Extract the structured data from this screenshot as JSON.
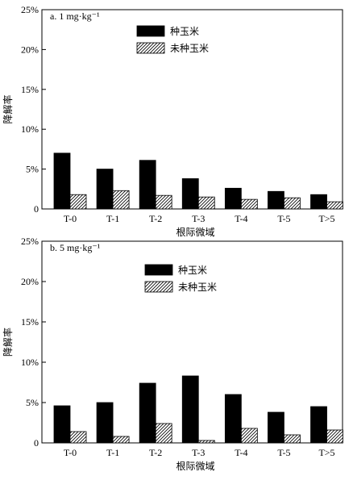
{
  "chart_data": [
    {
      "type": "bar",
      "panel_label": "a. 1 mg·kg⁻¹",
      "xlabel": "根际微域",
      "ylabel": "降解率",
      "categories": [
        "T-0",
        "T-1",
        "T-2",
        "T-3",
        "T-4",
        "T-5",
        "T>5"
      ],
      "y_ticks": [
        "0",
        "5%",
        "10%",
        "15%",
        "20%",
        "25%"
      ],
      "ylim": [
        0,
        25
      ],
      "legend_position": "top-center",
      "series": [
        {
          "name": "种玉米",
          "fill": "solid-black",
          "values": [
            7.0,
            5.0,
            6.1,
            3.8,
            2.6,
            2.2,
            1.8
          ]
        },
        {
          "name": "未种玉米",
          "fill": "hatched",
          "values": [
            1.8,
            2.3,
            1.7,
            1.5,
            1.2,
            1.4,
            0.9
          ]
        }
      ]
    },
    {
      "type": "bar",
      "panel_label": "b. 5 mg·kg⁻¹",
      "xlabel": "根际微域",
      "ylabel": "降解率",
      "categories": [
        "T-0",
        "T-1",
        "T-2",
        "T-3",
        "T-4",
        "T-5",
        "T>5"
      ],
      "y_ticks": [
        "0",
        "5%",
        "10%",
        "15%",
        "20%",
        "25%"
      ],
      "ylim": [
        0,
        25
      ],
      "legend_position": "top-center",
      "series": [
        {
          "name": "种玉米",
          "fill": "solid-black",
          "values": [
            4.6,
            5.0,
            7.4,
            8.3,
            6.0,
            3.8,
            4.5
          ]
        },
        {
          "name": "未种玉米",
          "fill": "hatched",
          "values": [
            1.4,
            0.8,
            2.4,
            0.3,
            1.8,
            1.0,
            1.6
          ]
        }
      ]
    }
  ]
}
